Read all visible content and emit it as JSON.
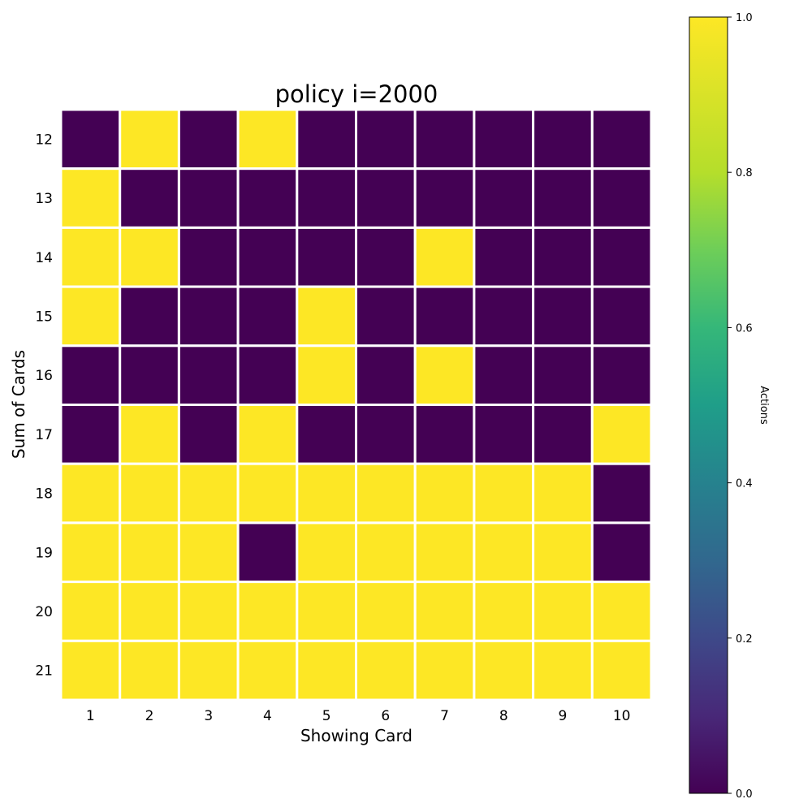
{
  "chart_data": {
    "type": "heatmap",
    "title": "policy i=2000",
    "xlabel": "Showing Card",
    "ylabel": "Sum of Cards",
    "x_categories": [
      "1",
      "2",
      "3",
      "4",
      "5",
      "6",
      "7",
      "8",
      "9",
      "10"
    ],
    "y_categories": [
      "12",
      "13",
      "14",
      "15",
      "16",
      "17",
      "18",
      "19",
      "20",
      "21"
    ],
    "values": [
      [
        0,
        1,
        0,
        1,
        0,
        0,
        0,
        0,
        0,
        0
      ],
      [
        1,
        0,
        0,
        0,
        0,
        0,
        0,
        0,
        0,
        0
      ],
      [
        1,
        1,
        0,
        0,
        0,
        0,
        1,
        0,
        0,
        0
      ],
      [
        1,
        0,
        0,
        0,
        1,
        0,
        0,
        0,
        0,
        0
      ],
      [
        0,
        0,
        0,
        0,
        1,
        0,
        1,
        0,
        0,
        0
      ],
      [
        0,
        1,
        0,
        1,
        0,
        0,
        0,
        0,
        0,
        1
      ],
      [
        1,
        1,
        1,
        1,
        1,
        1,
        1,
        1,
        1,
        0
      ],
      [
        1,
        1,
        1,
        0,
        1,
        1,
        1,
        1,
        1,
        0
      ],
      [
        1,
        1,
        1,
        1,
        1,
        1,
        1,
        1,
        1,
        1
      ],
      [
        1,
        1,
        1,
        1,
        1,
        1,
        1,
        1,
        1,
        1
      ]
    ],
    "colorbar": {
      "label": "Actions",
      "range": [
        0.0,
        1.0
      ],
      "ticks": [
        "0.0",
        "0.2",
        "0.4",
        "0.6",
        "0.8",
        "1.0"
      ],
      "colormap": "viridis"
    },
    "colors": {
      "low": "#440154",
      "high": "#fde725",
      "cell_border": "#ffffff"
    }
  }
}
